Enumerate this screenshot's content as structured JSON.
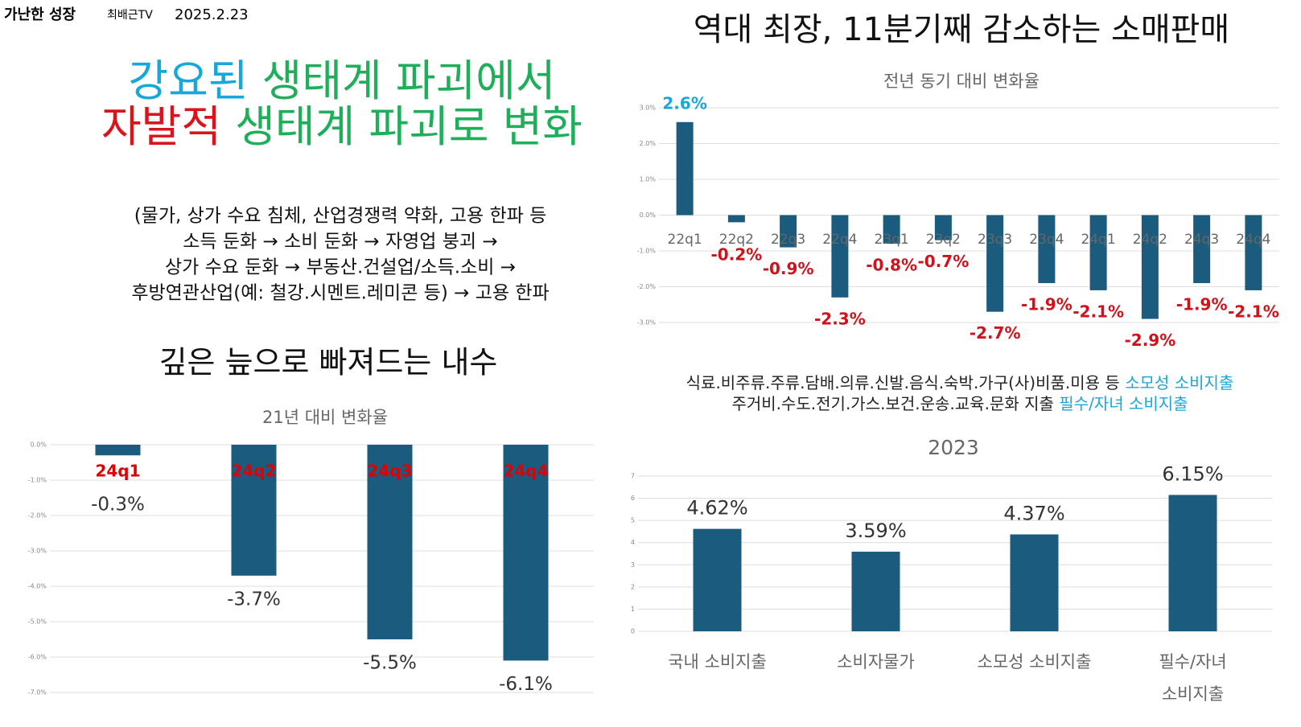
{
  "header": {
    "title": "가난한 성장",
    "channel": "최배근TV",
    "date": "2025.2.23"
  },
  "headline": [
    [
      {
        "text": "강요된",
        "color": "#19a7d9"
      },
      {
        "text": " 생태계 파괴에서",
        "color": "#1fae5a"
      }
    ],
    [
      {
        "text": "자발적",
        "color": "#d9141b"
      },
      {
        "text": " 생태계 파괴로 변화",
        "color": "#1fae5a"
      }
    ]
  ],
  "paragraph": [
    "(물가, 상가 수요 침체, 산업경쟁력 약화, 고용 한파 등",
    "소득 둔화 → 소비 둔화 → 자영업 붕괴 →",
    "상가 수요 둔화 → 부동산.건설업/소득.소비 →",
    "후방연관산업(예: 철강.시멘트.레미콘 등) → 고용 한파"
  ],
  "left_heading": "깊은 늪으로 빠져드는 내수",
  "right_heading": "역대 최장, 11분기째 감소하는 소매판매",
  "note": [
    [
      {
        "text": "식료.비주류.주류.담배.의류.신발.음식.숙박.가구(사)비품.미용 등 ",
        "color": "#222222"
      },
      {
        "text": "소모성 소비지출",
        "color": "#19a7d9"
      }
    ],
    [
      {
        "text": "주거비.수도.전기.가스.보건.운송.교육.문화 지출 ",
        "color": "#222222"
      },
      {
        "text": "필수/자녀 소비지출",
        "color": "#19a7d9"
      }
    ]
  ],
  "chart_data": [
    {
      "type": "bar",
      "title": "전년 동기 대비 변화율",
      "categories": [
        "22q1",
        "22q2",
        "22q3",
        "22q4",
        "23q1",
        "23q2",
        "23q3",
        "23q4",
        "24q1",
        "24q2",
        "24q3",
        "24q4"
      ],
      "values": [
        2.6,
        -0.2,
        -0.9,
        -2.3,
        -0.8,
        -0.7,
        -2.7,
        -1.9,
        -2.1,
        -2.9,
        -1.9,
        -2.1
      ],
      "value_labels": [
        "2.6%",
        "-0.2%",
        "-0.9%",
        "-2.3%",
        "-0.8%",
        "-0.7%",
        "-2.7%",
        "-1.9%",
        "-2.1%",
        "-2.9%",
        "-1.9%",
        "-2.1%"
      ],
      "color": "#1b5b7e",
      "positive_label_color": "#19a7d9",
      "negative_label_color": "#d0121b",
      "ylim": [
        -3,
        3
      ],
      "yticks": [
        {
          "value": 3,
          "label": "3.0%"
        },
        {
          "value": 2,
          "label": "2.0%"
        },
        {
          "value": 1,
          "label": "1.0%"
        },
        {
          "value": 0,
          "label": "0.0%"
        },
        {
          "value": -1,
          "label": "-1.0%"
        },
        {
          "value": -2,
          "label": "-2.0%"
        },
        {
          "value": -3,
          "label": "-3.0%"
        }
      ],
      "grid": true
    },
    {
      "type": "bar",
      "title": "21년 대비 변화율",
      "categories": [
        "24q1",
        "24q2",
        "24q3",
        "24q4"
      ],
      "values": [
        -0.3,
        -3.7,
        -5.5,
        -6.1
      ],
      "value_labels": [
        "-0.3%",
        "-3.7%",
        "-5.5%",
        "-6.1%"
      ],
      "color": "#1b5b7e",
      "category_color": "#e00000",
      "ylim": [
        -7,
        0
      ],
      "yticks": [
        {
          "value": 0,
          "label": "0.0%"
        },
        {
          "value": -1,
          "label": "-1.0%"
        },
        {
          "value": -2,
          "label": "-2.0%"
        },
        {
          "value": -3,
          "label": "-3.0%"
        },
        {
          "value": -4,
          "label": "-4.0%"
        },
        {
          "value": -5,
          "label": "-5.0%"
        },
        {
          "value": -6,
          "label": "-6.0%"
        },
        {
          "value": -7,
          "label": "-7.0%"
        }
      ],
      "grid": true
    },
    {
      "type": "bar",
      "title": "2023",
      "categories": [
        "국내 소비지출",
        "소비자물가",
        "소모성 소비지출",
        "필수/자녀 소비지출"
      ],
      "values": [
        4.62,
        3.59,
        4.37,
        6.15
      ],
      "value_labels": [
        "4.62%",
        "3.59%",
        "4.37%",
        "6.15%"
      ],
      "color": "#1b5b7e",
      "ylim": [
        0,
        7
      ],
      "yticks": [
        0,
        1,
        2,
        3,
        4,
        5,
        6,
        7
      ],
      "grid": true
    }
  ]
}
